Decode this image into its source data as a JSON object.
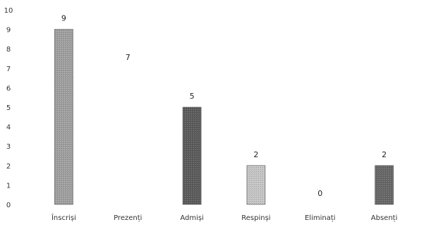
{
  "chart_data": {
    "type": "bar",
    "categories": [
      "Înscriși",
      "Prezenți",
      "Admiși",
      "Respinși",
      "Eliminați",
      "Absenți"
    ],
    "values": [
      9,
      7,
      5,
      2,
      0,
      2
    ],
    "data_labels": [
      "9",
      "7",
      "5",
      "2",
      "0",
      "2"
    ],
    "bar_shades": [
      "#a3a3a3",
      "#ffffff",
      "#5e5e5e",
      "#c9c9c9",
      "#ffffff",
      "#6a6a6a"
    ],
    "y_ticks": [
      "0",
      "1",
      "2",
      "3",
      "4",
      "5",
      "6",
      "7",
      "8",
      "9",
      "10"
    ],
    "ylim": [
      0,
      10
    ],
    "grid": false,
    "legend": "none",
    "title": "",
    "xlabel": "",
    "ylabel": ""
  }
}
